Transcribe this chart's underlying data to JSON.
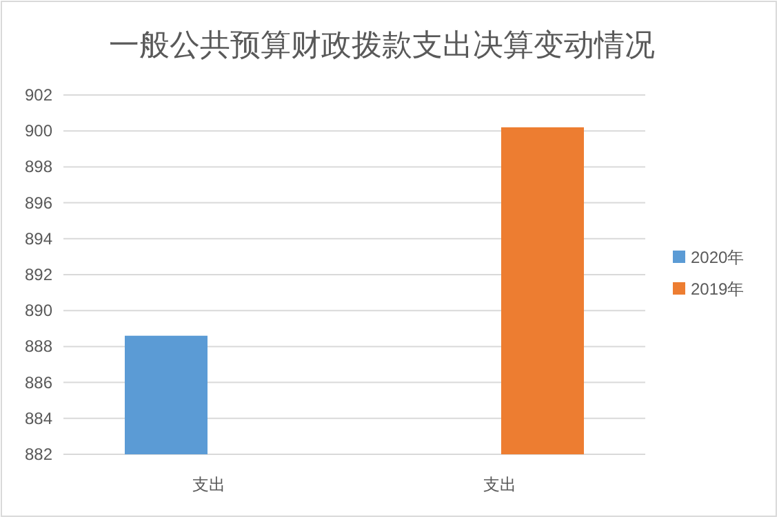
{
  "chart_data": {
    "type": "bar",
    "title": "一般公共预算财政拨款支出决算变动情况",
    "categories": [
      "支出",
      "支出"
    ],
    "series": [
      {
        "name": "2020年",
        "color": "#5b9bd5",
        "values": [
          888.6,
          null
        ]
      },
      {
        "name": "2019年",
        "color": "#ed7d31",
        "values": [
          null,
          900.2
        ]
      }
    ],
    "ylim": [
      882,
      902
    ],
    "yticks": [
      882,
      884,
      886,
      888,
      890,
      892,
      894,
      896,
      898,
      900,
      902
    ],
    "grid": "y",
    "legend": "right"
  }
}
